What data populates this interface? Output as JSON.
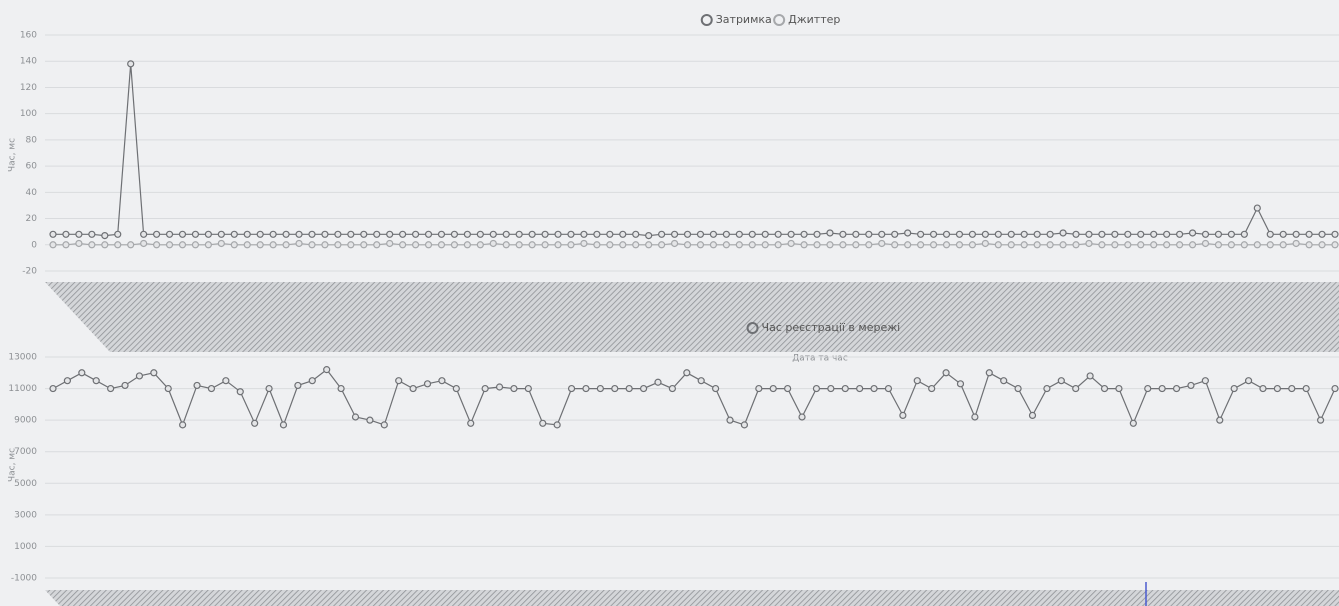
{
  "chart_data": [
    {
      "type": "line",
      "y_label": "Час, мс",
      "x_label": "Дата та час",
      "ylim": [
        -20,
        160
      ],
      "yticks": [
        -20,
        0,
        20,
        40,
        60,
        80,
        100,
        120,
        140,
        160
      ],
      "grid": true,
      "legend": "top",
      "series": [
        {
          "name": "Затримка",
          "color": "#6e7074",
          "values": [
            8,
            8,
            8,
            8,
            7,
            8,
            138,
            8,
            8,
            8,
            8,
            8,
            8,
            8,
            8,
            8,
            8,
            8,
            8,
            8,
            8,
            8,
            8,
            8,
            8,
            8,
            8,
            8,
            8,
            8,
            8,
            8,
            8,
            8,
            8,
            8,
            8,
            8,
            8,
            8,
            8,
            8,
            8,
            8,
            8,
            8,
            7,
            8,
            8,
            8,
            8,
            8,
            8,
            8,
            8,
            8,
            8,
            8,
            8,
            8,
            9,
            8,
            8,
            8,
            8,
            8,
            9,
            8,
            8,
            8,
            8,
            8,
            8,
            8,
            8,
            8,
            8,
            8,
            9,
            8,
            8,
            8,
            8,
            8,
            8,
            8,
            8,
            8,
            9,
            8,
            8,
            8,
            8,
            28,
            8,
            8,
            8,
            8,
            8,
            8
          ]
        },
        {
          "name": "Джиттер",
          "color": "#a6a8ab",
          "values": [
            0,
            0,
            1,
            0,
            0,
            0,
            0,
            1,
            0,
            0,
            0,
            0,
            0,
            1,
            0,
            0,
            0,
            0,
            0,
            1,
            0,
            0,
            0,
            0,
            0,
            0,
            1,
            0,
            0,
            0,
            0,
            0,
            0,
            0,
            1,
            0,
            0,
            0,
            0,
            0,
            0,
            1,
            0,
            0,
            0,
            0,
            0,
            0,
            1,
            0,
            0,
            0,
            0,
            0,
            0,
            0,
            0,
            1,
            0,
            0,
            0,
            0,
            0,
            0,
            1,
            0,
            0,
            0,
            0,
            0,
            0,
            0,
            1,
            0,
            0,
            0,
            0,
            0,
            0,
            0,
            1,
            0,
            0,
            0,
            0,
            0,
            0,
            0,
            0,
            1,
            0,
            0,
            0,
            0,
            0,
            0,
            1,
            0,
            0,
            0
          ]
        }
      ]
    },
    {
      "type": "line",
      "y_label": "Час, мс",
      "ylim": [
        -1000,
        13000
      ],
      "yticks": [
        -1000,
        1000,
        3000,
        5000,
        7000,
        9000,
        11000,
        13000
      ],
      "grid": true,
      "legend": "top",
      "series": [
        {
          "name": "Час реєстрації в мережі",
          "color": "#6e7074",
          "values": [
            11000,
            11500,
            12000,
            11500,
            11000,
            11200,
            11800,
            12000,
            11000,
            8700,
            11200,
            11000,
            11500,
            10800,
            8800,
            11000,
            8700,
            11200,
            11500,
            12200,
            11000,
            9200,
            9000,
            8700,
            11500,
            11000,
            11300,
            11500,
            11000,
            8800,
            11000,
            11100,
            11000,
            11000,
            8800,
            8700,
            11000,
            11000,
            11000,
            11000,
            11000,
            11000,
            11400,
            11000,
            12000,
            11500,
            11000,
            9000,
            8700,
            11000,
            11000,
            11000,
            9200,
            11000,
            11000,
            11000,
            11000,
            11000,
            11000,
            9300,
            11500,
            11000,
            12000,
            11300,
            9200,
            12000,
            11500,
            11000,
            9300,
            11000,
            11500,
            11000,
            11800,
            11000,
            11000,
            8800,
            11000,
            11000,
            11000,
            11200,
            11500,
            9000,
            11000,
            11500,
            11000,
            11000,
            11000,
            11000,
            9000,
            11000
          ]
        }
      ]
    }
  ]
}
